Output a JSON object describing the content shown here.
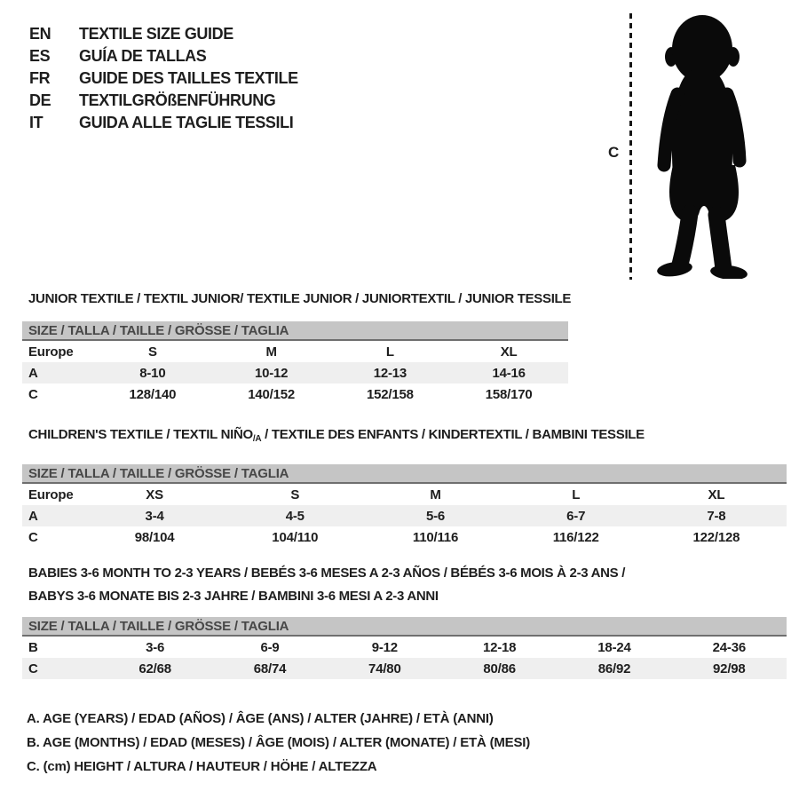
{
  "colors": {
    "ink": "#1e1e1e",
    "header_bar_bg": "#c5c5c5",
    "header_bar_border": "#6f6f6f",
    "header_bar_text": "#474747",
    "shaded_row_bg": "#efefef",
    "silhouette": "#0a0a0a"
  },
  "languages": [
    {
      "code": "EN",
      "label": "TEXTILE SIZE GUIDE"
    },
    {
      "code": "ES",
      "label": "GUÍA DE TALLAS"
    },
    {
      "code": "FR",
      "label": "GUIDE DES TAILLES TEXTILE"
    },
    {
      "code": "DE",
      "label": "TEXTILGRÖßENFÜHRUNG"
    },
    {
      "code": "IT",
      "label": "GUIDA ALLE TAGLIE TESSILI"
    }
  ],
  "figure": {
    "height_label": "C",
    "icon": "toddler-silhouette-icon"
  },
  "sections": [
    {
      "id": "junior",
      "heading_lines": [
        [
          {
            "t": "JUNIOR TEXTILE / TEXTIL JUNIOR/ TEXTILE JUNIOR / JUNIORTEXTIL / JUNIOR TESSILE"
          }
        ]
      ],
      "table_header": "SIZE / TALLA / TAILLE / GRÖSSE / TAGLIA",
      "rows": [
        {
          "label": "Europe",
          "shaded": false,
          "values": [
            "S",
            "M",
            "L",
            "XL"
          ]
        },
        {
          "label": "A",
          "shaded": true,
          "values": [
            "8-10",
            "10-12",
            "12-13",
            "14-16"
          ]
        },
        {
          "label": "C",
          "shaded": false,
          "values": [
            "128/140",
            "140/152",
            "152/158",
            "158/170"
          ]
        }
      ]
    },
    {
      "id": "children",
      "heading_lines": [
        [
          {
            "t": "CHILDREN'S TEXTILE / TEXTIL NIÑO"
          },
          {
            "t": "/A",
            "sub": true
          },
          {
            "t": " / TEXTILE DES ENFANTS / KINDERTEXTIL / BAMBINI TESSILE"
          }
        ]
      ],
      "table_header": "SIZE / TALLA / TAILLE / GRÖSSE / TAGLIA",
      "rows": [
        {
          "label": "Europe",
          "shaded": false,
          "values": [
            "XS",
            "S",
            "M",
            "L",
            "XL"
          ]
        },
        {
          "label": "A",
          "shaded": true,
          "values": [
            "3-4",
            "4-5",
            "5-6",
            "6-7",
            "7-8"
          ]
        },
        {
          "label": "C",
          "shaded": false,
          "values": [
            "98/104",
            "104/110",
            "110/116",
            "116/122",
            "122/128"
          ]
        }
      ]
    },
    {
      "id": "babies",
      "heading_lines": [
        [
          {
            "t": "BABIES 3-6 MONTH TO 2-3 YEARS / BEBÉS 3-6 MESES A 2-3 AÑOS / BÉBÉS 3-6 MOIS À 2-3 ANS /"
          }
        ],
        [
          {
            "t": "BABYS 3-6 MONATE BIS 2-3 JAHRE / BAMBINI 3-6 MESI A 2-3 ANNI"
          }
        ]
      ],
      "table_header": "SIZE / TALLA / TAILLE / GRÖSSE / TAGLIA",
      "rows": [
        {
          "label": "B",
          "shaded": false,
          "values": [
            "3-6",
            "6-9",
            "9-12",
            "12-18",
            "18-24",
            "24-36"
          ]
        },
        {
          "label": "C",
          "shaded": true,
          "values": [
            "62/68",
            "68/74",
            "74/80",
            "80/86",
            "86/92",
            "92/98"
          ]
        }
      ]
    }
  ],
  "legend": [
    "A. AGE (YEARS) / EDAD (AÑOS) / ÂGE (ANS) / ALTER (JAHRE) / ETÀ (ANNI)",
    "B. AGE (MONTHS) / EDAD (MESES) / ÂGE (MOIS) / ALTER (MONATE) / ETÀ (MESI)",
    "C. (cm) HEIGHT / ALTURA / HAUTEUR / HÖHE / ALTEZZA"
  ]
}
